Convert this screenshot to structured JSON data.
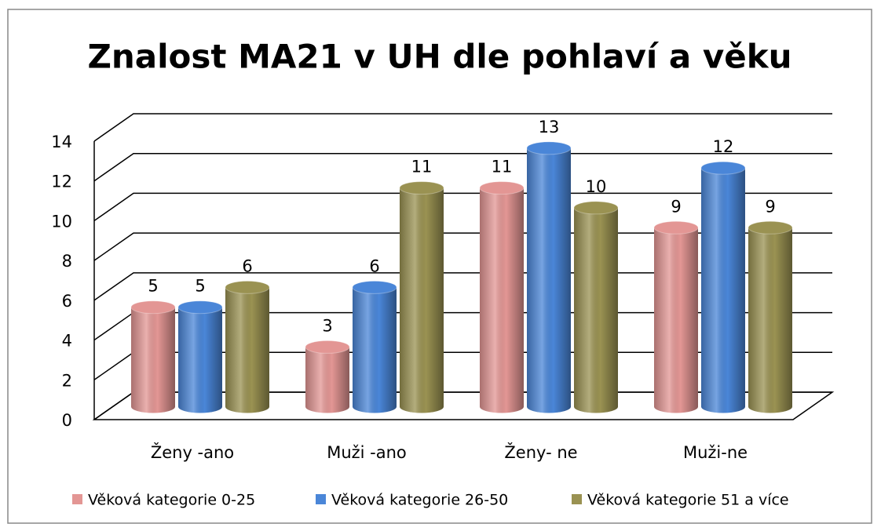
{
  "chart_data": {
    "type": "bar3d",
    "title": "Znalost MA21 v UH dle pohlaví a věku",
    "categories": [
      "Ženy -ano",
      "Muži -ano",
      "Ženy- ne",
      "Muži-ne"
    ],
    "series": [
      {
        "name": "Věková kategorie 0-25",
        "color": "#e39694",
        "values": [
          5,
          3,
          11,
          9
        ]
      },
      {
        "name": "Věková kategorie 26-50",
        "color": "#4a86d8",
        "values": [
          5,
          6,
          13,
          12
        ]
      },
      {
        "name": "Věková kategorie 51 a více",
        "color": "#9a9252",
        "values": [
          6,
          11,
          10,
          9
        ]
      }
    ],
    "ylim": [
      0,
      14
    ],
    "yticks": [
      0,
      2,
      4,
      6,
      8,
      10,
      12,
      14
    ],
    "grid": true,
    "legend": "bottom"
  }
}
